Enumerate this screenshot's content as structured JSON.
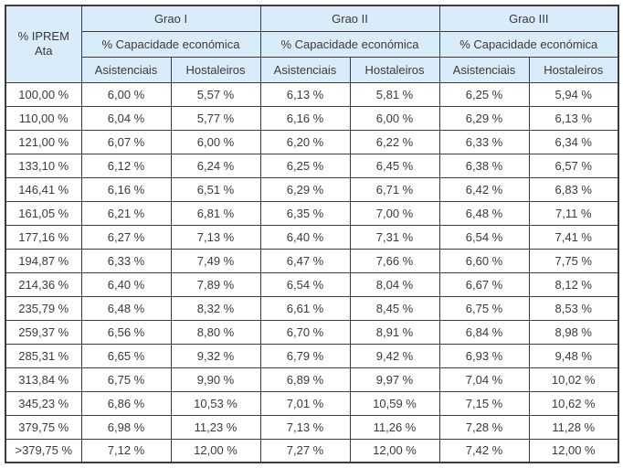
{
  "table": {
    "corner": {
      "line1": "% IPREM",
      "line2": "Ata"
    },
    "groups": [
      {
        "label": "Grao I",
        "sub": "% Capacidade económica"
      },
      {
        "label": "Grao II",
        "sub": "% Capacidade económica"
      },
      {
        "label": "Grao III",
        "sub": "% Capacidade económica"
      }
    ],
    "col_headers": [
      "Asistenciais",
      "Hostaleiros",
      "Asistenciais",
      "Hostaleiros",
      "Asistenciais",
      "Hostaleiros"
    ],
    "rows": [
      [
        "100,00 %",
        "6,00 %",
        "5,57 %",
        "6,13 %",
        "5,81 %",
        "6,25 %",
        "5,94 %"
      ],
      [
        "110,00 %",
        "6,04 %",
        "5,77 %",
        "6,16 %",
        "6,00 %",
        "6,29 %",
        "6,13 %"
      ],
      [
        "121,00 %",
        "6,07 %",
        "6,00 %",
        "6,20 %",
        "6,22 %",
        "6,33 %",
        "6,34 %"
      ],
      [
        "133,10 %",
        "6,12 %",
        "6,24 %",
        "6,25 %",
        "6,45 %",
        "6,38 %",
        "6,57 %"
      ],
      [
        "146,41 %",
        "6,16 %",
        "6,51 %",
        "6,29 %",
        "6,71 %",
        "6,42 %",
        "6,83 %"
      ],
      [
        "161,05 %",
        "6,21 %",
        "6,81 %",
        "6,35 %",
        "7,00 %",
        "6,48 %",
        "7,11 %"
      ],
      [
        "177,16 %",
        "6,27 %",
        "7,13 %",
        "6,40 %",
        "7,31 %",
        "6,54 %",
        "7,41 %"
      ],
      [
        "194,87 %",
        "6,33 %",
        "7,49 %",
        "6,47 %",
        "7,66 %",
        "6,60 %",
        "7,75 %"
      ],
      [
        "214,36 %",
        "6,40 %",
        "7,89 %",
        "6,54 %",
        "8,04 %",
        "6,67 %",
        "8,12 %"
      ],
      [
        "235,79 %",
        "6,48 %",
        "8,32 %",
        "6,61 %",
        "8,45 %",
        "6,75 %",
        "8,53 %"
      ],
      [
        "259,37 %",
        "6,56 %",
        "8,80 %",
        "6,70 %",
        "8,91 %",
        "6,84 %",
        "8,98 %"
      ],
      [
        "285,31 %",
        "6,65 %",
        "9,32 %",
        "6,79 %",
        "9,42 %",
        "6,93 %",
        "9,48 %"
      ],
      [
        "313,84 %",
        "6,75 %",
        "9,90 %",
        "6,89 %",
        "9,97 %",
        "7,04 %",
        "10,02 %"
      ],
      [
        "345,23 %",
        "6,86 %",
        "10,53 %",
        "7,01 %",
        "10,59 %",
        "7,15 %",
        "10,62 %"
      ],
      [
        "379,75 %",
        "6,98 %",
        "11,23 %",
        "7,13 %",
        "11,26 %",
        "7,28 %",
        "11,28 %"
      ],
      [
        ">379,75 %",
        "7,12 %",
        "12,00 %",
        "7,27 %",
        "12,00 %",
        "7,42 %",
        "12,00 %"
      ]
    ],
    "colors": {
      "header_bg": "#d9ecf9",
      "border": "#3c3c3c",
      "text": "#3a3a3a"
    }
  },
  "chart_data": {
    "type": "table",
    "title": "",
    "columns": [
      "% IPREM Ata",
      "Grao I Asistenciais",
      "Grao I Hostaleiros",
      "Grao II Asistenciais",
      "Grao II Hostaleiros",
      "Grao III Asistenciais",
      "Grao III Hostaleiros"
    ]
  }
}
